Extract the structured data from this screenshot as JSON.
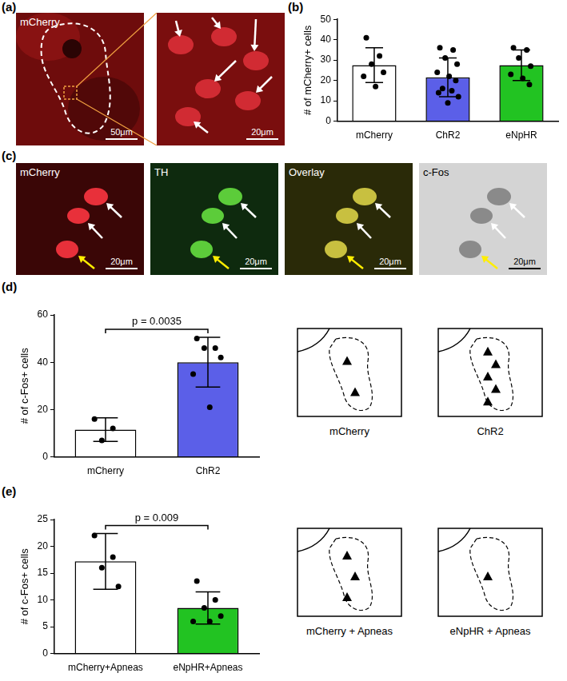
{
  "figure": {
    "a": {
      "letter": "(a)",
      "images": [
        {
          "label": "mCherry",
          "scale_bar": "50μm"
        },
        {
          "scale_bar": "20μm"
        }
      ]
    },
    "c": {
      "letter": "(c)",
      "images": [
        {
          "label": "mCherry",
          "scale_bar": "20μm"
        },
        {
          "label": "TH",
          "scale_bar": "20μm"
        },
        {
          "label": "Overlay",
          "scale_bar": "20μm"
        },
        {
          "label": "c-Fos",
          "scale_bar": "20μm"
        }
      ]
    }
  },
  "chart_data": [
    {
      "panel": "(b)",
      "type": "bar",
      "ylabel": "# of mCherry+ cells",
      "categories": [
        "mCherry",
        "ChR2",
        "eNpHR"
      ],
      "values": [
        27.5,
        21.5,
        27.5
      ],
      "error": [
        8.5,
        9.5,
        7.5
      ],
      "points": [
        [
          41,
          32,
          28,
          24,
          22,
          17
        ],
        [
          36,
          35,
          31,
          28,
          24,
          22,
          20,
          16,
          15,
          14,
          12,
          9
        ],
        [
          36,
          35,
          31,
          27,
          23,
          21,
          18
        ]
      ],
      "colors": [
        "#ffffff",
        "#5b5fe8",
        "#22c322"
      ],
      "ylim": [
        0,
        50
      ],
      "yticks": [
        0,
        10,
        20,
        30,
        40,
        50
      ],
      "grid": false
    },
    {
      "panel": "(d)",
      "type": "bar",
      "ylabel": "# of c-Fos+ cells",
      "categories": [
        "mCherry",
        "ChR2"
      ],
      "values": [
        11.5,
        40
      ],
      "error": [
        5,
        10.5
      ],
      "points": [
        [
          16,
          12,
          7
        ],
        [
          50,
          46,
          46,
          42,
          35,
          21
        ]
      ],
      "colors": [
        "#ffffff",
        "#5b5fe8"
      ],
      "ylim": [
        0,
        60
      ],
      "yticks": [
        0,
        20,
        40,
        60
      ],
      "grid": false,
      "annotations": [
        {
          "text": "p = 0.0035",
          "groups": [
            "mCherry",
            "ChR2"
          ]
        }
      ],
      "schematic": [
        {
          "label": "mCherry",
          "cells": 2
        },
        {
          "label": "ChR2",
          "cells": 5
        }
      ]
    },
    {
      "panel": "(e)",
      "type": "bar",
      "ylabel": "# of c-Fos+ cells",
      "categories": [
        "mCherry+Apneas",
        "eNpHR+Apneas"
      ],
      "values": [
        17.2,
        8.5
      ],
      "error": [
        5.2,
        3
      ],
      "points": [
        [
          22,
          18,
          16,
          12.5
        ],
        [
          13.5,
          10,
          8.5,
          7,
          6,
          6
        ]
      ],
      "colors": [
        "#ffffff",
        "#22c322"
      ],
      "ylim": [
        0,
        25
      ],
      "yticks": [
        0,
        5,
        10,
        15,
        20,
        25
      ],
      "grid": false,
      "annotations": [
        {
          "text": "p = 0.009",
          "groups": [
            "mCherry+Apneas",
            "eNpHR+Apneas"
          ]
        }
      ],
      "schematic": [
        {
          "label": "mCherry + Apneas",
          "cells": 3
        },
        {
          "label": "eNpHR + Apneas",
          "cells": 1
        }
      ]
    }
  ]
}
